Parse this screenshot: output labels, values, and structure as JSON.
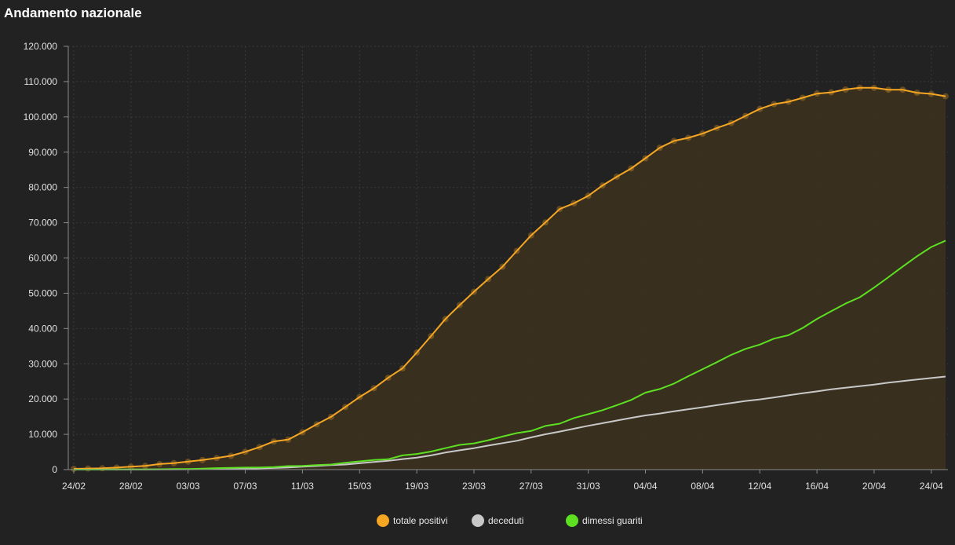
{
  "title": "Andamento nazionale",
  "colors": {
    "background": "#222222",
    "grid": "#3a3a3a",
    "axis": "#8a8a8a",
    "area_fill": "#3a3020"
  },
  "chart_data": {
    "type": "line",
    "title": "Andamento nazionale",
    "xlabel": "",
    "ylabel": "",
    "ylim": [
      0,
      120000
    ],
    "y_ticks": [
      0,
      10000,
      20000,
      30000,
      40000,
      50000,
      60000,
      70000,
      80000,
      90000,
      100000,
      110000,
      120000
    ],
    "y_tick_labels": [
      "0",
      "10.000",
      "20.000",
      "30.000",
      "40.000",
      "50.000",
      "60.000",
      "70.000",
      "80.000",
      "90.000",
      "100.000",
      "110.000",
      "120.000"
    ],
    "x_tick_labels": [
      "24/02",
      "28/02",
      "03/03",
      "07/03",
      "11/03",
      "15/03",
      "19/03",
      "23/03",
      "27/03",
      "31/03",
      "04/04",
      "08/04",
      "12/04",
      "16/04",
      "20/04",
      "24/04"
    ],
    "x": [
      "24/02",
      "25/02",
      "26/02",
      "27/02",
      "28/02",
      "29/02",
      "01/03",
      "02/03",
      "03/03",
      "04/03",
      "05/03",
      "06/03",
      "07/03",
      "08/03",
      "09/03",
      "10/03",
      "11/03",
      "12/03",
      "13/03",
      "14/03",
      "15/03",
      "16/03",
      "17/03",
      "18/03",
      "19/03",
      "20/03",
      "21/03",
      "22/03",
      "23/03",
      "24/03",
      "25/03",
      "26/03",
      "27/03",
      "28/03",
      "29/03",
      "30/03",
      "31/03",
      "01/04",
      "02/04",
      "03/04",
      "04/04",
      "05/04",
      "06/04",
      "07/04",
      "08/04",
      "09/04",
      "10/04",
      "11/04",
      "12/04",
      "13/04",
      "14/04",
      "15/04",
      "16/04",
      "17/04",
      "18/04",
      "19/04",
      "20/04",
      "21/04",
      "22/04",
      "23/04",
      "24/04",
      "25/04"
    ],
    "grid": true,
    "legend_position": "bottom-center",
    "series": [
      {
        "name": "totale positivi",
        "color": "#f5a623",
        "fill": true,
        "values": [
          221,
          311,
          385,
          588,
          821,
          1049,
          1577,
          1835,
          2263,
          2706,
          3296,
          3916,
          5061,
          6387,
          7985,
          8514,
          10590,
          12839,
          14955,
          17750,
          20603,
          23073,
          26062,
          28710,
          33190,
          37860,
          42681,
          46638,
          50418,
          54030,
          57521,
          62013,
          66414,
          70065,
          73880,
          75528,
          77635,
          80572,
          83049,
          85388,
          88274,
          91246,
          93187,
          94067,
          95262,
          96877,
          98273,
          100269,
          102253,
          103616,
          104291,
          105418,
          106607,
          106962,
          107771,
          108257,
          108237,
          107709,
          107699,
          106848,
          106527,
          105847
        ]
      },
      {
        "name": "deceduti",
        "color": "#c8c8c8",
        "fill": false,
        "values": [
          7,
          10,
          12,
          17,
          21,
          29,
          34,
          52,
          79,
          107,
          148,
          197,
          233,
          366,
          463,
          631,
          827,
          1016,
          1266,
          1441,
          1809,
          2158,
          2503,
          2978,
          3405,
          4032,
          4825,
          5476,
          6077,
          6820,
          7503,
          8165,
          9134,
          10023,
          10779,
          11591,
          12428,
          13155,
          13915,
          14681,
          15362,
          15887,
          16523,
          17127,
          17669,
          18279,
          18849,
          19468,
          19899,
          20465,
          21067,
          21645,
          22170,
          22745,
          23227,
          23660,
          24114,
          24648,
          25085,
          25549,
          25969,
          26384
        ]
      },
      {
        "name": "dimessi guariti",
        "color": "#5ce021",
        "fill": false,
        "values": [
          1,
          1,
          3,
          45,
          46,
          50,
          83,
          149,
          160,
          276,
          414,
          523,
          589,
          622,
          724,
          1004,
          1045,
          1258,
          1439,
          1966,
          2335,
          2749,
          2941,
          4025,
          4440,
          5129,
          6072,
          7024,
          7432,
          8326,
          9362,
          10361,
          10950,
          12384,
          13030,
          14620,
          15729,
          16847,
          18278,
          19758,
          21815,
          22837,
          24392,
          26491,
          28470,
          30455,
          32534,
          34211,
          35435,
          37130,
          38092,
          40164,
          42727,
          44927,
          47055,
          48877,
          51600,
          54543,
          57576,
          60498,
          63120,
          64928
        ]
      }
    ]
  }
}
